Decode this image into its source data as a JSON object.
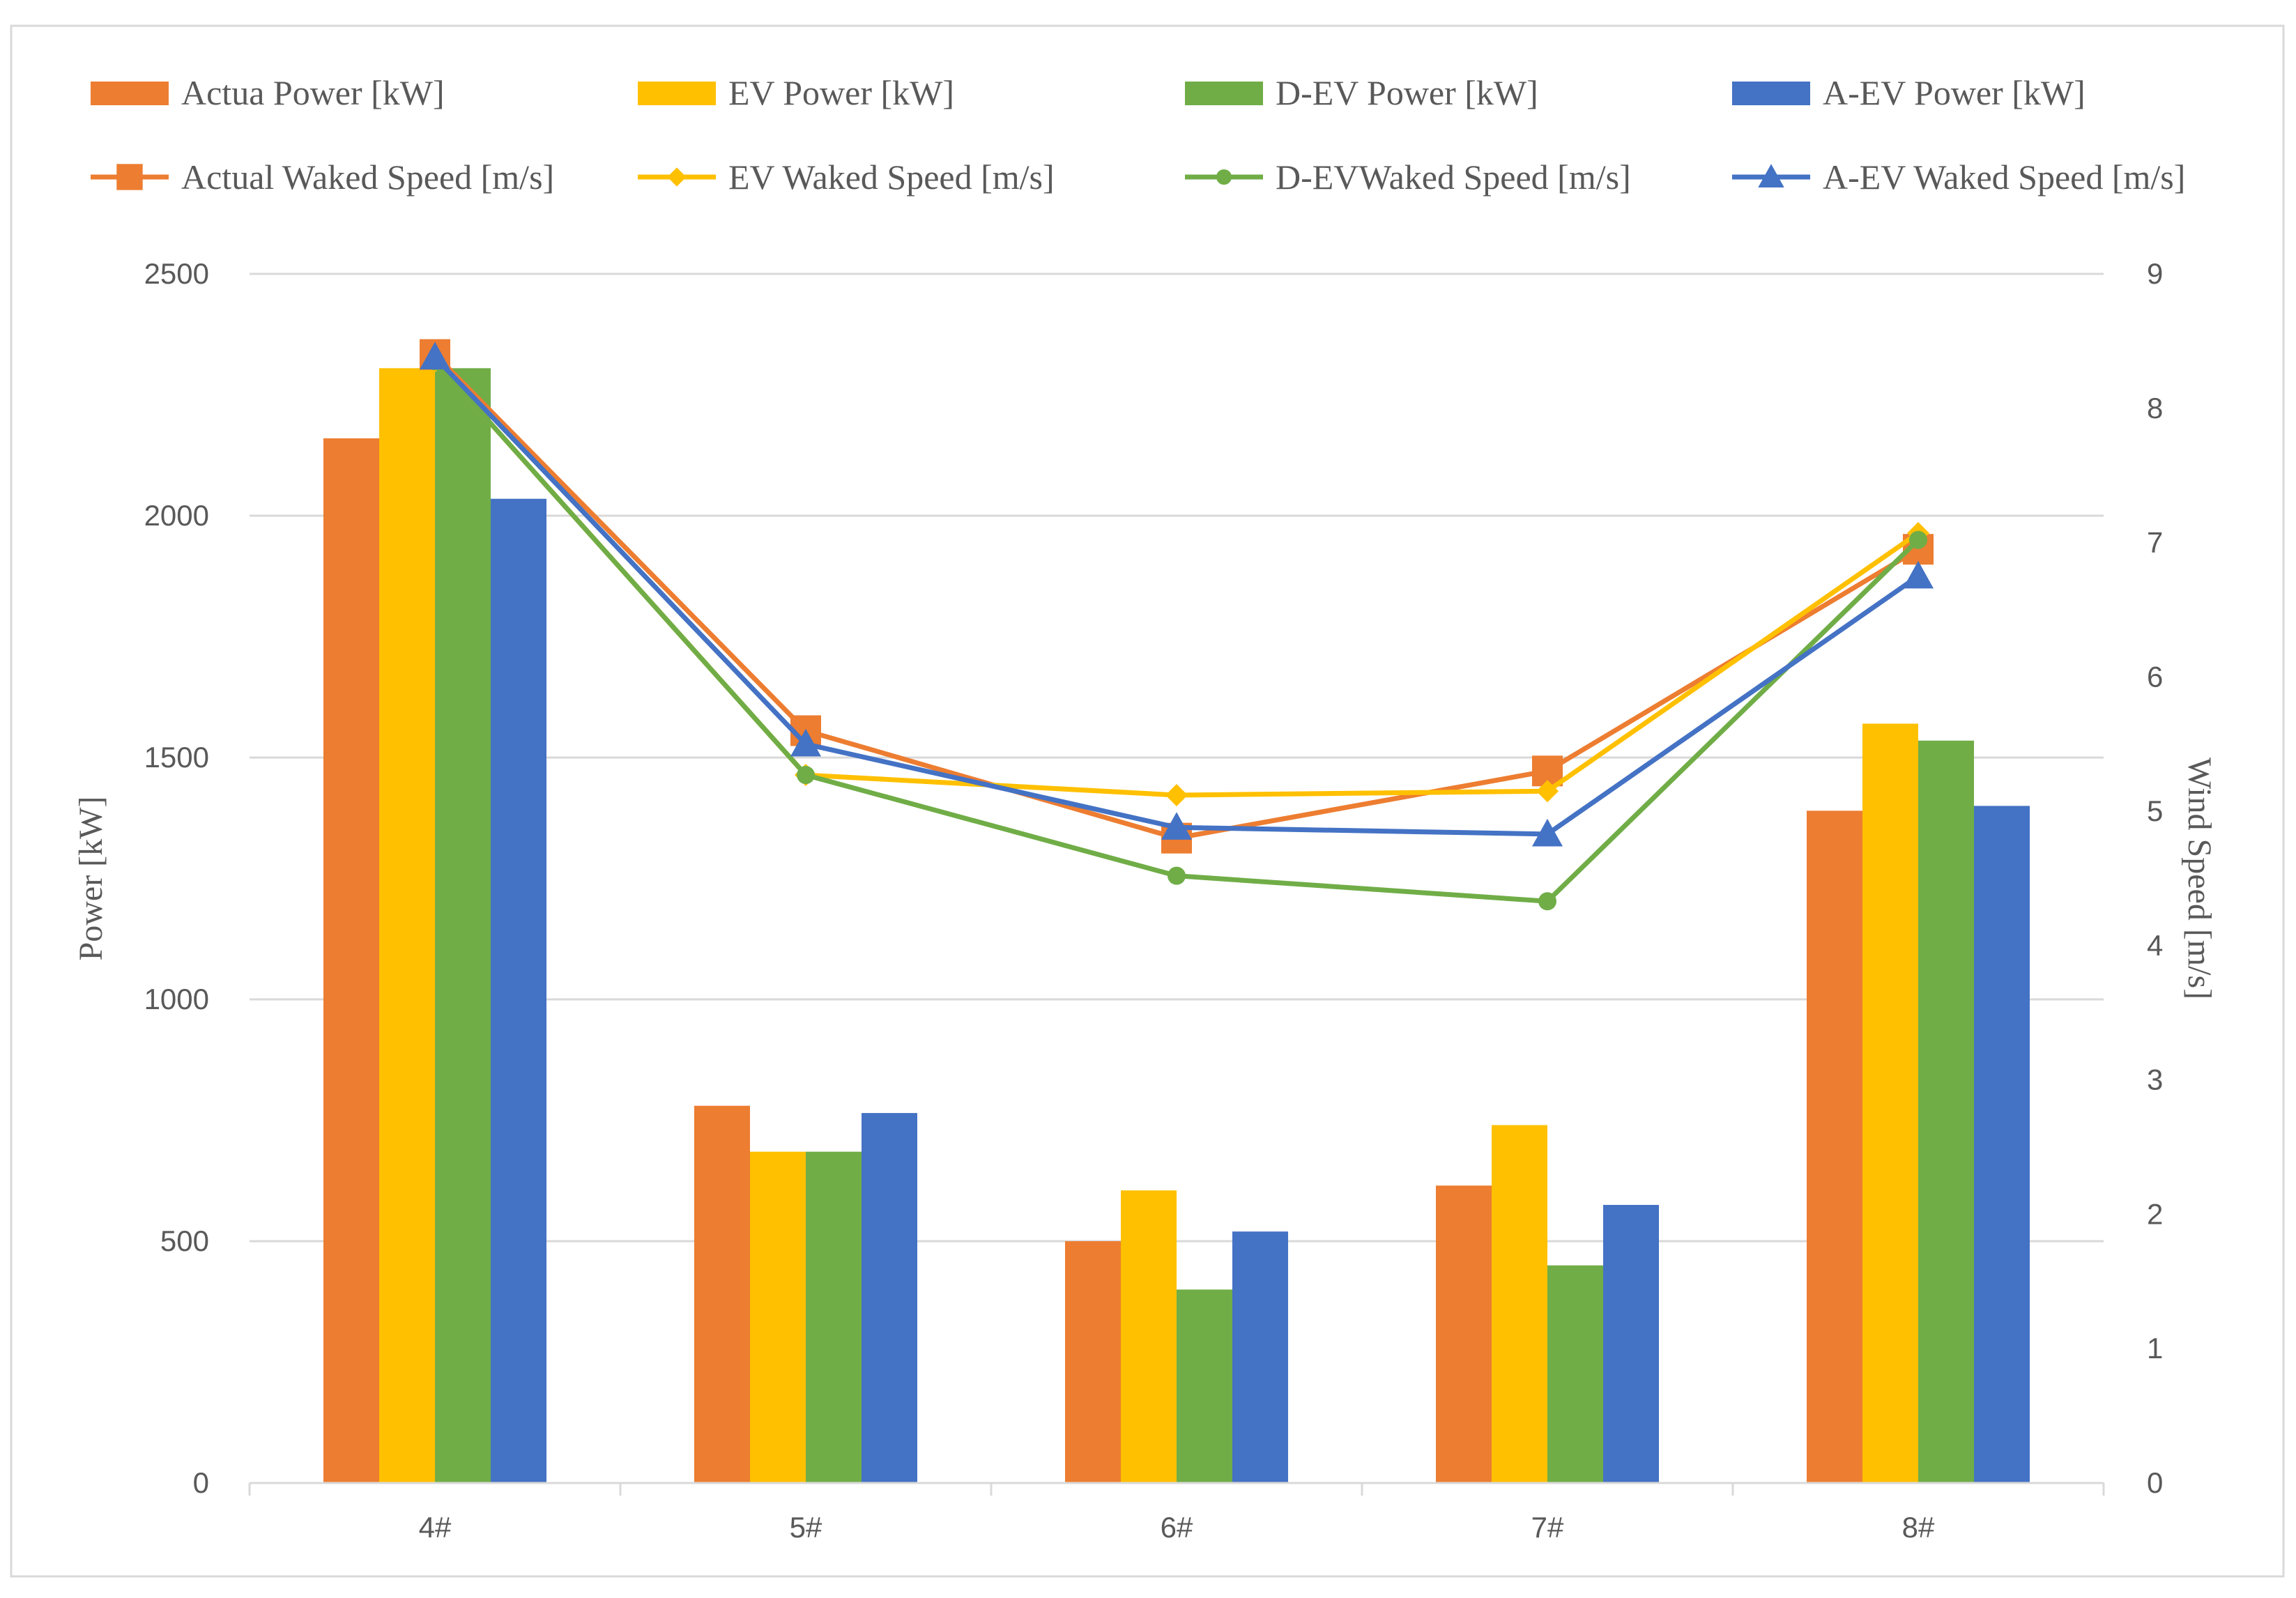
{
  "chart_data": {
    "type": "bar",
    "combo": true,
    "categories": [
      "4#",
      "5#",
      "6#",
      "7#",
      "8#"
    ],
    "bar_series": [
      {
        "name": "Actua Power [kW]",
        "color": "#ED7D31",
        "values": [
          2160,
          780,
          500,
          615,
          1390
        ]
      },
      {
        "name": "EV Power [kW]",
        "color": "#FFC000",
        "values": [
          2305,
          685,
          605,
          740,
          1570
        ]
      },
      {
        "name": "D-EV Power [kW]",
        "color": "#70AD47",
        "values": [
          2305,
          685,
          400,
          450,
          1535
        ]
      },
      {
        "name": "A-EV Power [kW]",
        "color": "#4472C4",
        "values": [
          2035,
          765,
          520,
          575,
          1400
        ]
      }
    ],
    "line_series": [
      {
        "name": "Actual Waked Speed [m/s]",
        "color": "#ED7D31",
        "marker": "square",
        "values": [
          8.4,
          5.6,
          4.8,
          5.3,
          6.95
        ]
      },
      {
        "name": "EV Waked Speed [m/s]",
        "color": "#FFC000",
        "marker": "diamond",
        "values": [
          8.35,
          5.27,
          5.12,
          5.15,
          7.07
        ]
      },
      {
        "name": "D-EVWaked Speed [m/s]",
        "color": "#70AD47",
        "marker": "circle",
        "values": [
          8.35,
          5.27,
          4.52,
          4.33,
          7.02
        ]
      },
      {
        "name": "A-EV Waked Speed [m/s]",
        "color": "#4472C4",
        "marker": "triangle",
        "values": [
          8.38,
          5.5,
          4.88,
          4.83,
          6.75
        ]
      }
    ],
    "ylabel": "Power [kW]",
    "y2label": "Wind Speed [m/s]",
    "ylim": [
      0,
      2500
    ],
    "y2lim": [
      0,
      9
    ],
    "yticks": [
      0,
      500,
      1000,
      1500,
      2000,
      2500
    ],
    "y2ticks": [
      0,
      1,
      2,
      3,
      4,
      5,
      6,
      7,
      8,
      9
    ],
    "grid": true,
    "legend_position": "top"
  }
}
